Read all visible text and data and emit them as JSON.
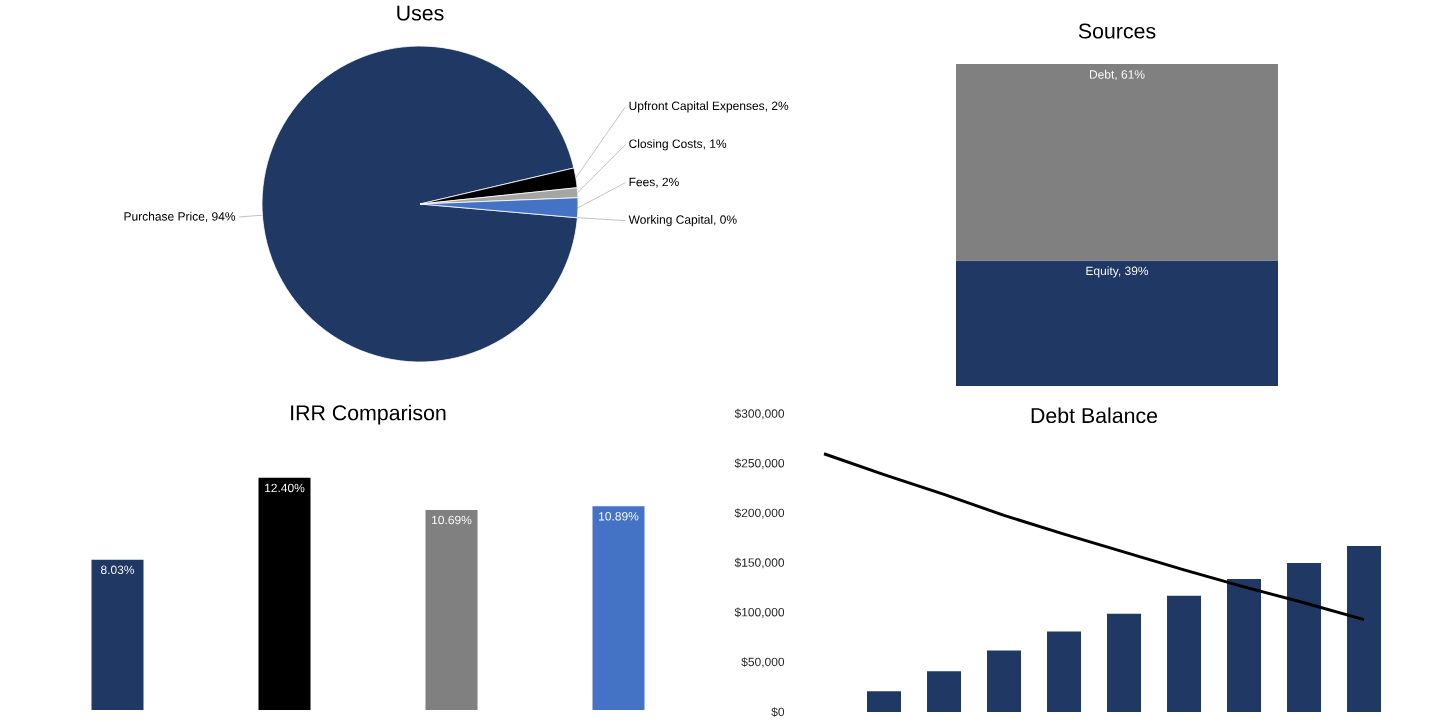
{
  "chart_data": [
    {
      "type": "pie",
      "title": "Uses",
      "categories": [
        "Purchase Price, 94%",
        "Upfront Capital Expenses, 2%",
        "Closing Costs, 1%",
        "Fees, 2%",
        "Working Capital, 0%"
      ],
      "values": [
        94,
        2,
        1,
        2,
        0
      ],
      "colors": [
        "#1f3864",
        "#000000",
        "#a5a5a5",
        "#4472c4",
        "#5b9bd5"
      ]
    },
    {
      "type": "bar",
      "title": "Sources",
      "categories": [
        null
      ],
      "stacked": true,
      "tick_labels": false,
      "series": [
        {
          "color": "#1f3864",
          "values": [
            39
          ],
          "value_labels": [
            "Equity, 39%"
          ]
        },
        {
          "color": "#808080",
          "values": [
            61
          ],
          "value_labels": [
            "Debt, 61%"
          ]
        }
      ]
    },
    {
      "type": "bar",
      "title": "IRR Comparison",
      "categories": [
        null,
        null,
        null,
        null
      ],
      "values": [
        8.03,
        12.4,
        10.69,
        10.89
      ],
      "value_labels": [
        "8.03%",
        "12.40%",
        "10.69%",
        "10.89%"
      ],
      "colors": [
        "#1f3864",
        "#000000",
        "#808080",
        "#4472c4"
      ],
      "tick_labels": false
    },
    {
      "type": "bar",
      "title": "Debt Balance",
      "categories": [
        null,
        null,
        null,
        null,
        null,
        null,
        null,
        null,
        null,
        null
      ],
      "ylim": [
        0,
        300000
      ],
      "yticks": [
        {
          "value": 0,
          "label": "$0"
        },
        {
          "value": 50000,
          "label": "$50,000"
        },
        {
          "value": 100000,
          "label": "$100,000"
        },
        {
          "value": 150000,
          "label": "$150,000"
        },
        {
          "value": 200000,
          "label": "$200,000"
        },
        {
          "value": 250000,
          "label": "$250,000"
        },
        {
          "value": 300000,
          "label": "$300,000"
        }
      ],
      "tick_labels": "y",
      "series": [
        {
          "color": "#1f3864",
          "values": [
            null,
            21000,
            41000,
            62000,
            81000,
            99000,
            117000,
            134000,
            150000,
            167000
          ]
        },
        {
          "type": "line",
          "color": "#000000",
          "values": [
            260000,
            239000,
            219000,
            198000,
            179000,
            161000,
            143000,
            126000,
            110000,
            93000
          ]
        }
      ]
    }
  ]
}
